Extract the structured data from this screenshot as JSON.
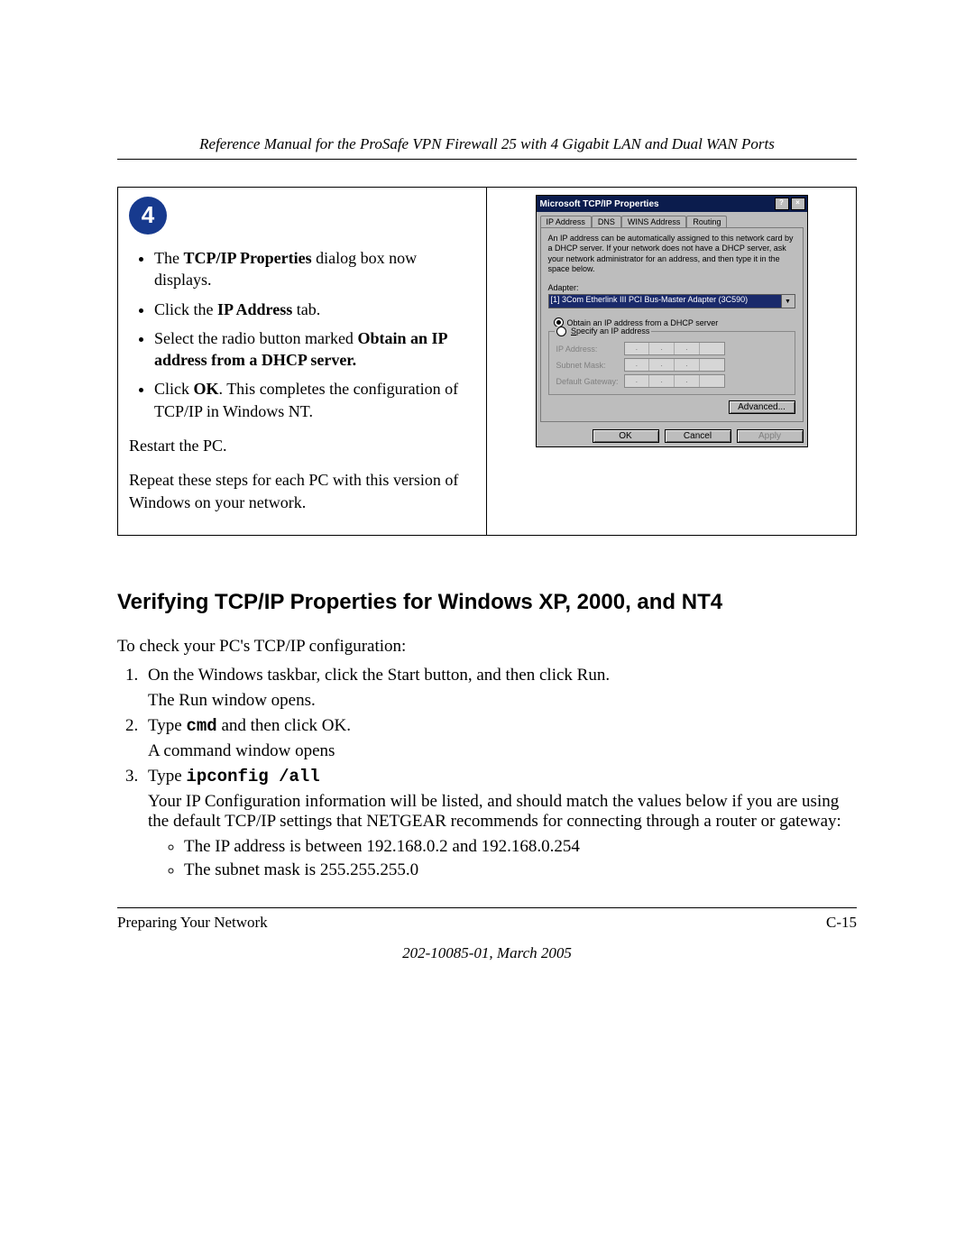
{
  "header": {
    "title": "Reference Manual for the ProSafe VPN Firewall 25 with 4 Gigabit LAN and Dual WAN Ports"
  },
  "step_box": {
    "step_number": "4",
    "bullet1_pre": "The ",
    "bullet1_bold": "TCP/IP Properties",
    "bullet1_post": " dialog box now displays.",
    "bullet2_pre": "Click the ",
    "bullet2_bold": "IP Address",
    "bullet2_post": " tab.",
    "bullet3_pre": "Select the radio button marked ",
    "bullet3_bold": "Obtain an IP address from a DHCP server.",
    "bullet4_pre": "Click ",
    "bullet4_bold": "OK",
    "bullet4_post": ".  This completes the configuration of TCP/IP in Windows NT.",
    "restart": "Restart the PC.",
    "repeat": "Repeat these steps for each PC with this version of Windows on your network."
  },
  "dialog": {
    "title": "Microsoft TCP/IP Properties",
    "help_btn": "?",
    "close_btn": "×",
    "tabs": {
      "ip": "IP Address",
      "dns": "DNS",
      "wins": "WINS Address",
      "routing": "Routing"
    },
    "info": "An IP address can be automatically assigned to this network card by a DHCP server. If your network does not have a DHCP server, ask your network administrator for an address, and then type it in the space below.",
    "adapter_label": "Adapter:",
    "adapter_value": "[1] 3Com Etherlink III PCI Bus-Master Adapter (3C590)",
    "radio_obtain_u": "O",
    "radio_obtain": "btain an IP address from a DHCP server",
    "radio_specify_u": "S",
    "radio_specify": "pecify an IP address",
    "ip_label": "IP Address:",
    "mask_label": "Subnet Mask:",
    "gw_label": "Default Gateway:",
    "advanced": "Advanced...",
    "ok": "OK",
    "cancel": "Cancel",
    "apply": "Apply"
  },
  "section": {
    "heading": "Verifying TCP/IP Properties for Windows XP, 2000, and NT4",
    "intro": "To check your PC's TCP/IP configuration:",
    "s1": "On the Windows taskbar, click the Start button, and then click Run.",
    "s1b": "The Run window opens.",
    "s2a": "Type ",
    "s2cmd": "cmd",
    "s2b": " and then click OK.",
    "s2c": "A command window opens",
    "s3a": "Type ",
    "s3cmd": "ipconfig /all",
    "s3b": "Your IP Configuration information will be listed, and should match the values below if you are using the default TCP/IP settings that NETGEAR recommends for connecting through a router or gateway:",
    "s3_bullet1": "The IP address is between 192.168.0.2 and 192.168.0.254",
    "s3_bullet2": "The subnet mask is 255.255.255.0"
  },
  "footer": {
    "left": "Preparing Your Network",
    "right": "C-15",
    "date": "202-10085-01, March 2005"
  },
  "colors": {
    "step_circle_bg": "#173a8e",
    "dialog_titlebar_bg": "#0b1c4d",
    "dialog_bg": "#bdbdbd",
    "dropdown_sel_bg": "#1a2a6b"
  }
}
